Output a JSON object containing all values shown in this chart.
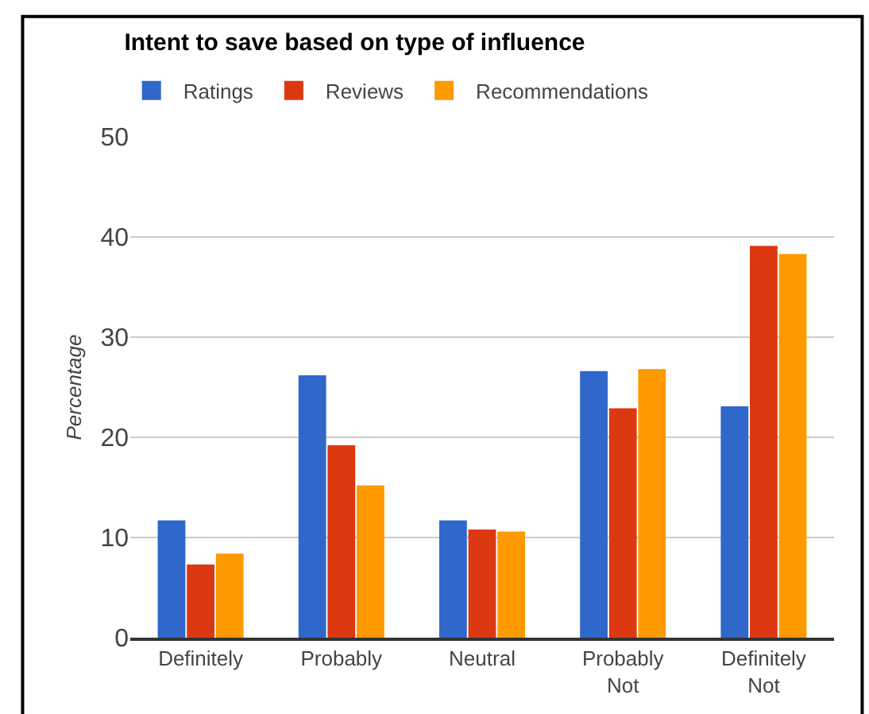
{
  "chart_data": {
    "type": "bar",
    "title": "Intent to save based on type of influence",
    "ylabel": "Percentage",
    "categories": [
      "Definitely",
      "Probably",
      "Neutral",
      "Probably Not",
      "Definitely Not"
    ],
    "series": [
      {
        "name": "Ratings",
        "color": "#3067cb",
        "values": [
          11.7,
          26.2,
          11.7,
          26.6,
          23.1
        ]
      },
      {
        "name": "Reviews",
        "color": "#dc3812",
        "values": [
          7.3,
          19.2,
          10.8,
          22.9,
          39.1
        ]
      },
      {
        "name": "Recommendations",
        "color": "#fe9900",
        "values": [
          8.4,
          15.2,
          10.6,
          26.8,
          38.3
        ]
      }
    ],
    "ylim": [
      0,
      50
    ],
    "yticks": [
      0,
      10,
      20,
      30,
      40,
      50
    ],
    "grid": "y",
    "legend": "top left"
  }
}
